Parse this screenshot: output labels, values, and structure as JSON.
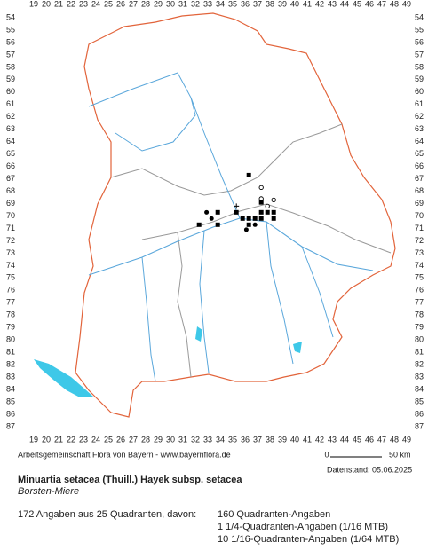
{
  "map": {
    "columns": [
      19,
      20,
      21,
      22,
      23,
      24,
      25,
      26,
      27,
      28,
      29,
      30,
      31,
      32,
      33,
      34,
      35,
      36,
      37,
      38,
      39,
      40,
      41,
      42,
      43,
      44,
      45,
      46,
      47,
      48,
      49
    ],
    "rows": [
      54,
      55,
      56,
      57,
      58,
      59,
      60,
      61,
      62,
      63,
      64,
      65,
      66,
      67,
      68,
      69,
      70,
      71,
      72,
      73,
      74,
      75,
      76,
      77,
      78,
      79,
      80,
      81,
      82,
      83,
      84,
      85,
      86,
      87
    ],
    "markers": [
      {
        "kind": "square",
        "col": 36.3,
        "row": 66.7
      },
      {
        "kind": "square",
        "col": 33.8,
        "row": 69.7
      },
      {
        "kind": "square",
        "col": 35.3,
        "row": 69.7
      },
      {
        "kind": "square",
        "col": 35.8,
        "row": 70.2
      },
      {
        "kind": "square",
        "col": 36.3,
        "row": 70.2
      },
      {
        "kind": "square",
        "col": 36.8,
        "row": 70.2
      },
      {
        "kind": "square",
        "col": 37.3,
        "row": 70.2
      },
      {
        "kind": "square",
        "col": 37.3,
        "row": 69.7
      },
      {
        "kind": "square",
        "col": 37.8,
        "row": 69.7
      },
      {
        "kind": "square",
        "col": 38.3,
        "row": 69.7
      },
      {
        "kind": "square",
        "col": 38.3,
        "row": 70.2
      },
      {
        "kind": "square",
        "col": 33.8,
        "row": 70.7
      },
      {
        "kind": "square",
        "col": 32.3,
        "row": 70.7
      },
      {
        "kind": "square",
        "col": 36.3,
        "row": 70.7
      },
      {
        "kind": "square",
        "col": 37.3,
        "row": 68.9
      },
      {
        "kind": "dot",
        "col": 32.9,
        "row": 69.7
      },
      {
        "kind": "dot",
        "col": 33.3,
        "row": 70.2
      },
      {
        "kind": "dot",
        "col": 36.8,
        "row": 70.7
      },
      {
        "kind": "dot",
        "col": 36.1,
        "row": 71.1
      },
      {
        "kind": "circle",
        "col": 37.3,
        "row": 67.7
      },
      {
        "kind": "circle",
        "col": 37.3,
        "row": 68.6
      },
      {
        "kind": "circle",
        "col": 38.3,
        "row": 68.7
      },
      {
        "kind": "circle",
        "col": 37.8,
        "row": 69.2
      },
      {
        "kind": "plus",
        "col": 35.3,
        "row": 69.2
      }
    ]
  },
  "footer": {
    "source": "Arbeitsgemeinschaft Flora von Bayern - www.bayernflora.de",
    "date": "Datenstand: 05.06.2025",
    "scale_start": "0",
    "scale_end": "50 km"
  },
  "species": {
    "name": "Minuartia setacea (Thuill.) Hayek subsp. setacea",
    "common_name": "Borsten-Miere"
  },
  "summary": {
    "total": "172 Angaben aus 25 Quadranten, davon:",
    "lines": [
      "160 Quadranten-Angaben",
      "1 1/4-Quadranten-Angaben (1/16 MTB)",
      "10 1/16-Quadranten-Angaben (1/64 MTB)"
    ]
  }
}
